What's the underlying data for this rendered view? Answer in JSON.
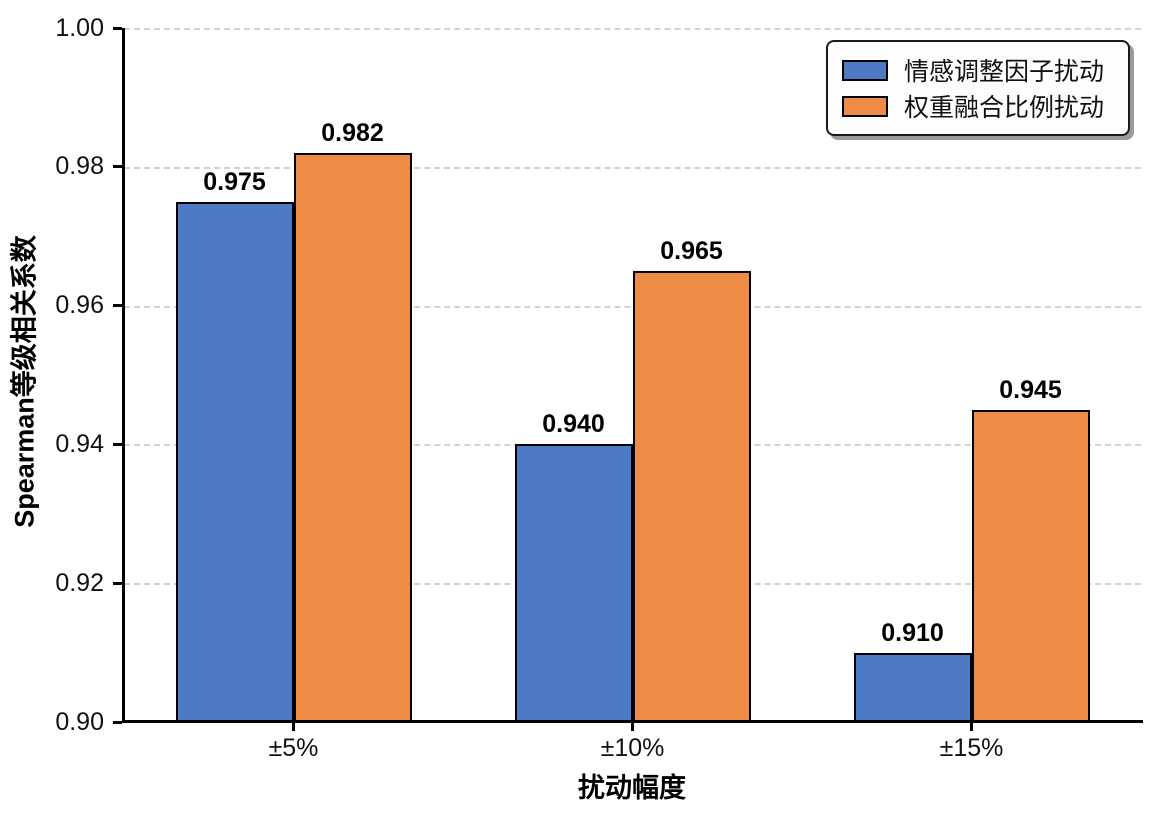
{
  "chart_data": {
    "type": "bar",
    "categories": [
      "±5%",
      "±10%",
      "±15%"
    ],
    "series": [
      {
        "name": "情感调整因子扰动",
        "color": "#4E79C4",
        "values": [
          0.975,
          0.94,
          0.91
        ],
        "value_labels": [
          "0.975",
          "0.940",
          "0.910"
        ]
      },
      {
        "name": "权重融合比例扰动",
        "color": "#EE8C46",
        "values": [
          0.982,
          0.965,
          0.945
        ],
        "value_labels": [
          "0.982",
          "0.965",
          "0.945"
        ]
      }
    ],
    "title": "",
    "xlabel": "扰动幅度",
    "ylabel": "Spearman等级相关系数",
    "ylim": [
      0.9,
      1.0
    ],
    "yticks": [
      {
        "value": 0.9,
        "label": "0.90"
      },
      {
        "value": 0.92,
        "label": "0.92"
      },
      {
        "value": 0.94,
        "label": "0.94"
      },
      {
        "value": 0.96,
        "label": "0.96"
      },
      {
        "value": 0.98,
        "label": "0.98"
      },
      {
        "value": 1.0,
        "label": "1.00"
      }
    ],
    "grid": "horizontal-dashed",
    "grid_color": "#d2d2d2",
    "legend_position": "upper-right",
    "bar_edge_color": "#000000",
    "axis_color": "#000000",
    "background": "#ffffff"
  }
}
